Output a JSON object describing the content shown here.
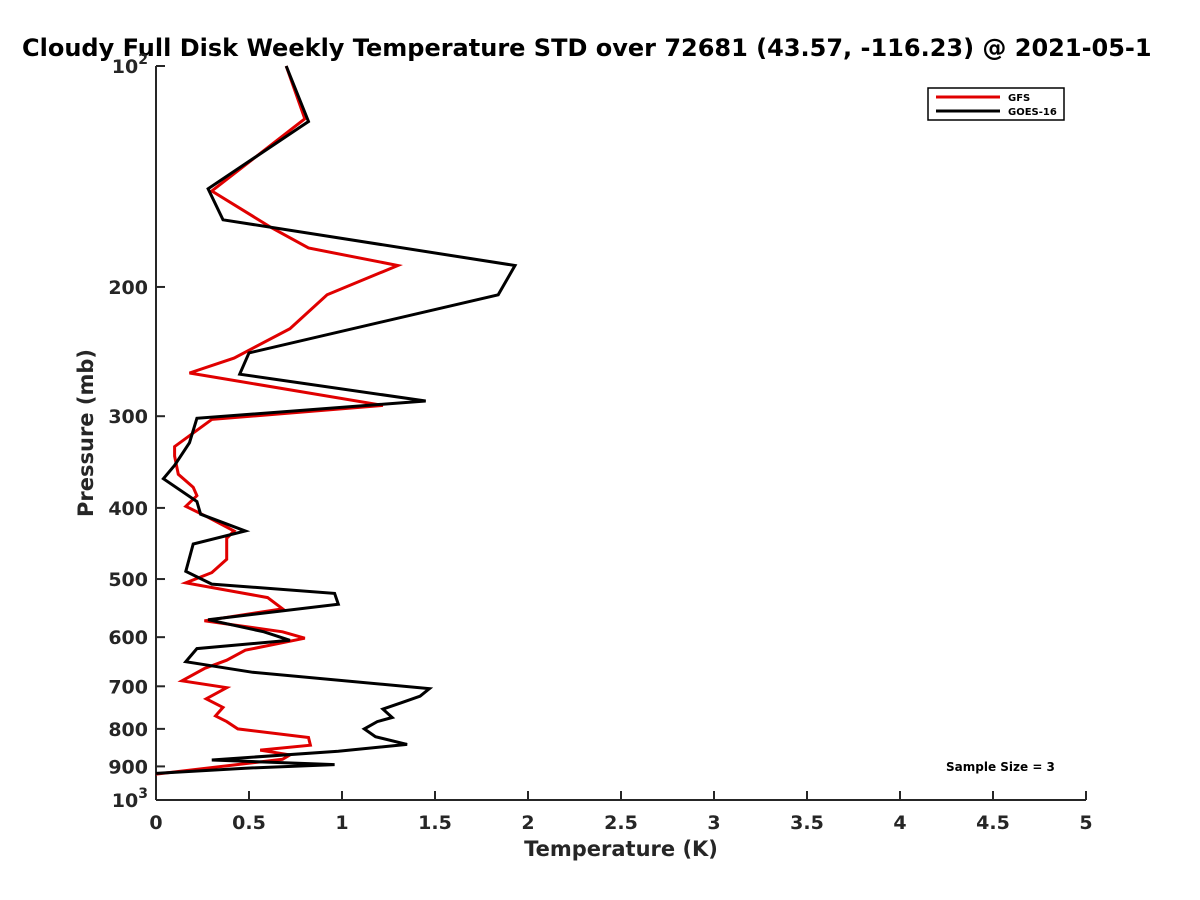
{
  "chart_data": {
    "type": "line",
    "title": "Cloudy Full Disk Weekly Temperature STD over 72681 (43.57, -116.23) @ 2021-05-1",
    "xlabel": "Temperature (K)",
    "ylabel": "Pressure (mb)",
    "xlim": [
      0,
      5
    ],
    "ylim": [
      100,
      1000
    ],
    "y_scale": "log",
    "y_reversed": true,
    "x_ticks": [
      "0",
      "0.5",
      "1",
      "1.5",
      "2",
      "2.5",
      "3",
      "3.5",
      "4",
      "4.5",
      "5"
    ],
    "y_ticks": [
      {
        "value": 100,
        "base": "10",
        "exp": "2"
      },
      {
        "value": 200,
        "label": "200"
      },
      {
        "value": 300,
        "label": "300"
      },
      {
        "value": 400,
        "label": "400"
      },
      {
        "value": 500,
        "label": "500"
      },
      {
        "value": 600,
        "label": "600"
      },
      {
        "value": 700,
        "label": "700"
      },
      {
        "value": 800,
        "label": "800"
      },
      {
        "value": 900,
        "label": "900"
      },
      {
        "value": 1000,
        "base": "10",
        "exp": "3"
      }
    ],
    "grid": false,
    "legend_position": "top-right",
    "annotation": "Sample Size = 3",
    "series": [
      {
        "name": "GFS",
        "color": "#e00000",
        "points": [
          [
            0.7,
            100
          ],
          [
            0.8,
            118
          ],
          [
            0.3,
            148
          ],
          [
            0.62,
            166
          ],
          [
            0.82,
            177
          ],
          [
            1.3,
            187
          ],
          [
            0.92,
            205
          ],
          [
            0.72,
            228
          ],
          [
            0.42,
            250
          ],
          [
            0.18,
            262
          ],
          [
            1.22,
            290
          ],
          [
            0.3,
            303
          ],
          [
            0.1,
            330
          ],
          [
            0.1,
            340
          ],
          [
            0.12,
            360
          ],
          [
            0.2,
            375
          ],
          [
            0.22,
            385
          ],
          [
            0.16,
            398
          ],
          [
            0.28,
            412
          ],
          [
            0.42,
            430
          ],
          [
            0.38,
            440
          ],
          [
            0.38,
            470
          ],
          [
            0.3,
            490
          ],
          [
            0.16,
            506
          ],
          [
            0.6,
            530
          ],
          [
            0.68,
            549
          ],
          [
            0.26,
            570
          ],
          [
            0.68,
            590
          ],
          [
            0.8,
            602
          ],
          [
            0.48,
            625
          ],
          [
            0.38,
            645
          ],
          [
            0.26,
            662
          ],
          [
            0.14,
            688
          ],
          [
            0.38,
            703
          ],
          [
            0.27,
            728
          ],
          [
            0.36,
            748
          ],
          [
            0.32,
            768
          ],
          [
            0.38,
            782
          ],
          [
            0.44,
            800
          ],
          [
            0.82,
            822
          ],
          [
            0.83,
            842
          ],
          [
            0.56,
            855
          ],
          [
            0.72,
            868
          ],
          [
            0.68,
            880
          ],
          [
            0.0,
            922
          ]
        ]
      },
      {
        "name": "GOES-16",
        "color": "#000000",
        "points": [
          [
            0.7,
            100
          ],
          [
            0.82,
            119
          ],
          [
            0.28,
            147
          ],
          [
            0.36,
            162
          ],
          [
            1.93,
            187
          ],
          [
            1.84,
            205
          ],
          [
            0.5,
            246
          ],
          [
            0.45,
            263
          ],
          [
            1.45,
            286
          ],
          [
            0.22,
            302
          ],
          [
            0.18,
            326
          ],
          [
            0.1,
            350
          ],
          [
            0.04,
            365
          ],
          [
            0.22,
            392
          ],
          [
            0.24,
            408
          ],
          [
            0.48,
            430
          ],
          [
            0.2,
            448
          ],
          [
            0.16,
            488
          ],
          [
            0.3,
            508
          ],
          [
            0.96,
            523
          ],
          [
            0.98,
            541
          ],
          [
            0.28,
            568
          ],
          [
            0.58,
            590
          ],
          [
            0.72,
            606
          ],
          [
            0.22,
            622
          ],
          [
            0.16,
            648
          ],
          [
            0.52,
            670
          ],
          [
            1.47,
            705
          ],
          [
            1.42,
            722
          ],
          [
            1.32,
            737
          ],
          [
            1.22,
            752
          ],
          [
            1.27,
            772
          ],
          [
            1.19,
            782
          ],
          [
            1.12,
            800
          ],
          [
            1.18,
            820
          ],
          [
            1.35,
            840
          ],
          [
            0.98,
            858
          ],
          [
            0.3,
            882
          ],
          [
            0.96,
            895
          ],
          [
            0.48,
            905
          ],
          [
            0.0,
            920
          ]
        ]
      }
    ]
  }
}
